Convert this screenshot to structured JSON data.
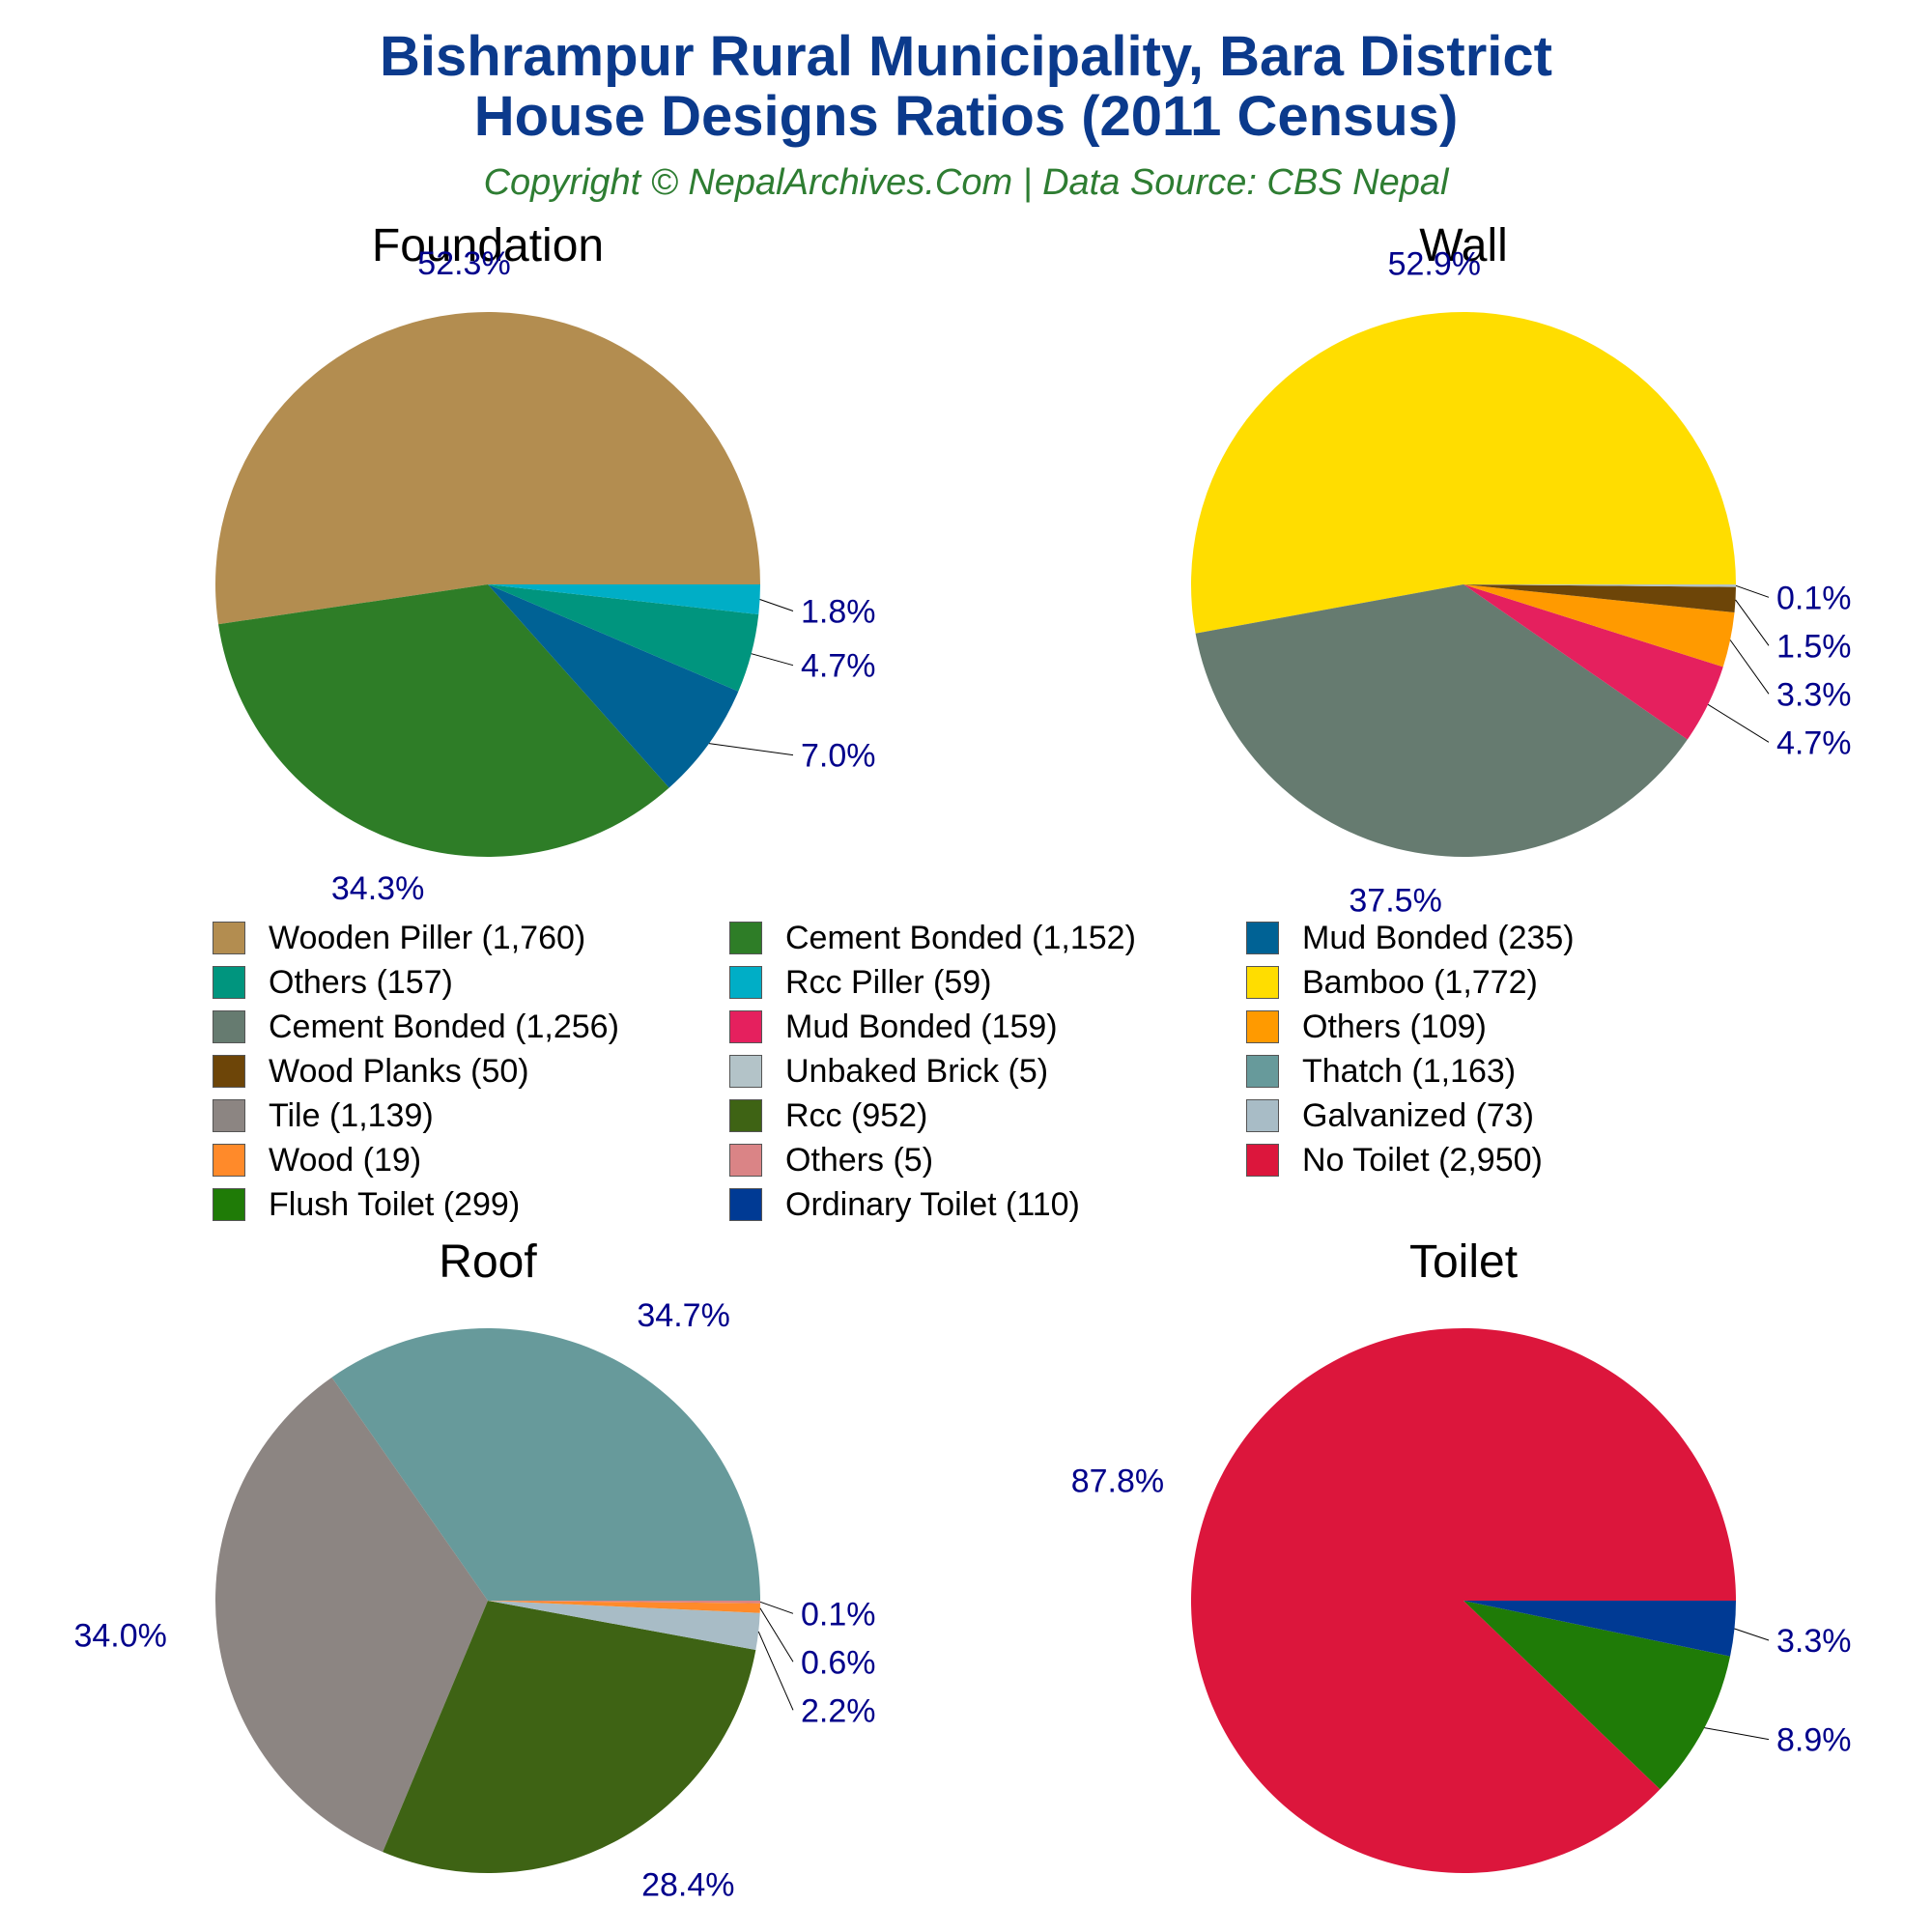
{
  "header": {
    "title_line1": "Bishrampur Rural Municipality, Bara District",
    "title_line2": "House Designs Ratios (2011 Census)",
    "subtitle": "Copyright © NepalArchives.Com | Data Source: CBS Nepal"
  },
  "colors": {
    "title": "#0b3a8c",
    "subtitle": "#2e7d32",
    "percent_labels": "#00008b",
    "chart_titles": "#000000"
  },
  "legend": [
    {
      "label": "Wooden Piller (1,760)",
      "color": "#b38d50"
    },
    {
      "label": "Cement Bonded (1,152)",
      "color": "#2e7d27"
    },
    {
      "label": "Mud Bonded (235)",
      "color": "#006295"
    },
    {
      "label": "Others (157)",
      "color": "#00957e"
    },
    {
      "label": "Rcc Piller (59)",
      "color": "#00aec6"
    },
    {
      "label": "Bamboo (1,772)",
      "color": "#ffdd00"
    },
    {
      "label": "Cement Bonded (1,256)",
      "color": "#667b70"
    },
    {
      "label": "Mud Bonded (159)",
      "color": "#e5205e"
    },
    {
      "label": "Others (109)",
      "color": "#ff9a00"
    },
    {
      "label": "Wood Planks (50)",
      "color": "#6d4508"
    },
    {
      "label": "Unbaked Brick (5)",
      "color": "#b3c3c8"
    },
    {
      "label": "Thatch (1,163)",
      "color": "#679a9b"
    },
    {
      "label": "Tile (1,139)",
      "color": "#8c8582"
    },
    {
      "label": "Rcc (952)",
      "color": "#3e6314"
    },
    {
      "label": "Galvanized (73)",
      "color": "#a8bcc6"
    },
    {
      "label": "Wood (19)",
      "color": "#ff8a2a"
    },
    {
      "label": "Others (5)",
      "color": "#da8486"
    },
    {
      "label": "No Toilet (2,950)",
      "color": "#dc163c"
    },
    {
      "label": "Flush Toilet (299)",
      "color": "#1f7b07"
    },
    {
      "label": "Ordinary Toilet (110)",
      "color": "#003a94"
    }
  ],
  "chart_data": [
    {
      "type": "pie",
      "title": "Foundation",
      "slices": [
        {
          "label": "Wooden Piller",
          "value": 1760,
          "percent": "52.3%",
          "color": "#b38d50"
        },
        {
          "label": "Cement Bonded",
          "value": 1152,
          "percent": "34.3%",
          "color": "#2e7d27"
        },
        {
          "label": "Mud Bonded",
          "value": 235,
          "percent": "7.0%",
          "color": "#006295"
        },
        {
          "label": "Others",
          "value": 157,
          "percent": "4.7%",
          "color": "#00957e"
        },
        {
          "label": "Rcc Piller",
          "value": 59,
          "percent": "1.8%",
          "color": "#00aec6"
        }
      ]
    },
    {
      "type": "pie",
      "title": "Wall",
      "slices": [
        {
          "label": "Bamboo",
          "value": 1772,
          "percent": "52.9%",
          "color": "#ffdd00"
        },
        {
          "label": "Cement Bonded",
          "value": 1256,
          "percent": "37.5%",
          "color": "#667b70"
        },
        {
          "label": "Mud Bonded",
          "value": 159,
          "percent": "4.7%",
          "color": "#e5205e"
        },
        {
          "label": "Others",
          "value": 109,
          "percent": "3.3%",
          "color": "#ff9a00"
        },
        {
          "label": "Wood Planks",
          "value": 50,
          "percent": "1.5%",
          "color": "#6d4508"
        },
        {
          "label": "Unbaked Brick",
          "value": 5,
          "percent": "0.1%",
          "color": "#b3c3c8"
        }
      ]
    },
    {
      "type": "pie",
      "title": "Roof",
      "slices": [
        {
          "label": "Thatch",
          "value": 1163,
          "percent": "34.7%",
          "color": "#679a9b"
        },
        {
          "label": "Tile",
          "value": 1139,
          "percent": "34.0%",
          "color": "#8c8582"
        },
        {
          "label": "Rcc",
          "value": 952,
          "percent": "28.4%",
          "color": "#3e6314"
        },
        {
          "label": "Galvanized",
          "value": 73,
          "percent": "2.2%",
          "color": "#a8bcc6"
        },
        {
          "label": "Wood",
          "value": 19,
          "percent": "0.6%",
          "color": "#ff8a2a"
        },
        {
          "label": "Others",
          "value": 5,
          "percent": "0.1%",
          "color": "#da8486"
        }
      ]
    },
    {
      "type": "pie",
      "title": "Toilet",
      "slices": [
        {
          "label": "No Toilet",
          "value": 2950,
          "percent": "87.8%",
          "color": "#dc163c"
        },
        {
          "label": "Flush Toilet",
          "value": 299,
          "percent": "8.9%",
          "color": "#1f7b07"
        },
        {
          "label": "Ordinary Toilet",
          "value": 110,
          "percent": "3.3%",
          "color": "#003a94"
        }
      ]
    }
  ]
}
